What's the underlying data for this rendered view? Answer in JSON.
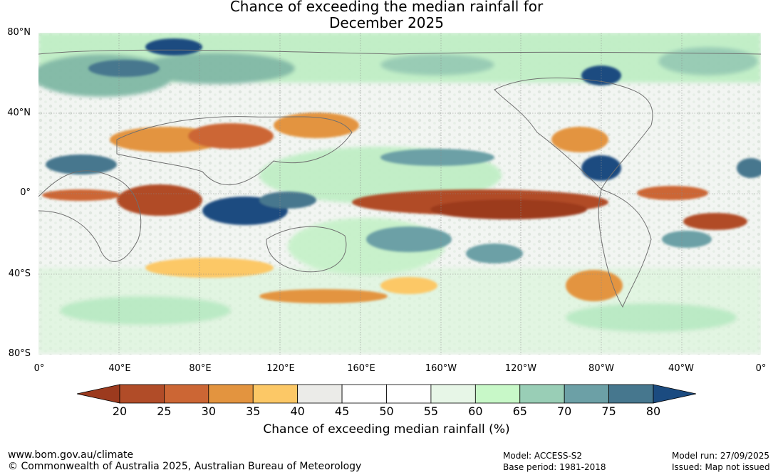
{
  "title_line1": "Chance of exceeding the median rainfall for",
  "title_line2": "December 2025",
  "map": {
    "lat_labels": [
      "80°N",
      "40°N",
      "0°",
      "40°S",
      "80°S"
    ],
    "lon_labels": [
      "0°",
      "40°E",
      "80°E",
      "120°E",
      "160°E",
      "160°W",
      "120°W",
      "80°W",
      "40°W",
      "0°"
    ]
  },
  "colorbar": {
    "ticks": [
      "20",
      "25",
      "30",
      "35",
      "40",
      "45",
      "50",
      "55",
      "60",
      "65",
      "70",
      "75",
      "80"
    ],
    "colors": [
      "#9c3a1e",
      "#b14c28",
      "#cc6634",
      "#e3943f",
      "#fcc866",
      "#ebebe8",
      "#ffffff",
      "#ffffff",
      "#e7f6e7",
      "#c8f8c8",
      "#99ceb6",
      "#6ca0a6",
      "#46778e",
      "#1b4b80"
    ],
    "label": "Chance of exceeding median rainfall (%)"
  },
  "footer": {
    "url": "www.bom.gov.au/climate",
    "copyright": "© Commonwealth of Australia 2025, Australian Bureau of Meteorology",
    "model": "Model: ACCESS-S2",
    "base_period": "Base period: 1981-2018",
    "model_run": "Model run: 27/09/2025",
    "issued": "Issued: Map not issued"
  }
}
